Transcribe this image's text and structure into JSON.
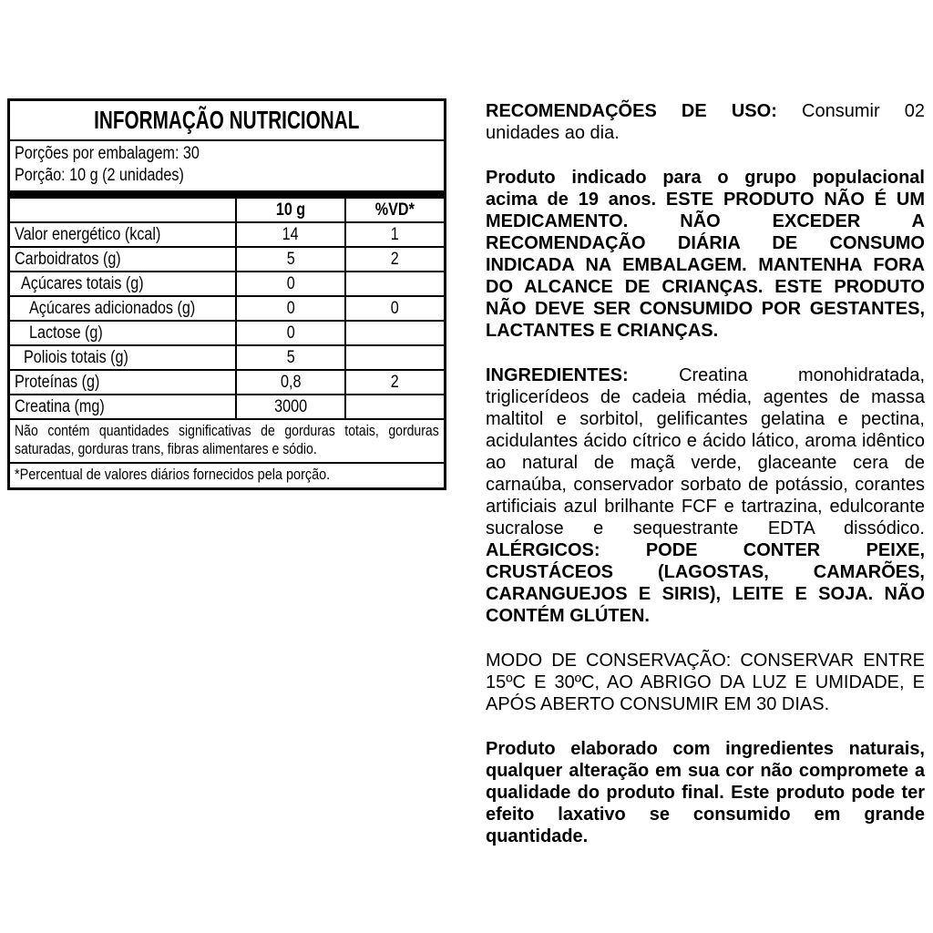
{
  "nutrition_table": {
    "title": "INFORMAÇÃO NUTRICIONAL",
    "servings_per_package": "Porções por embalagem: 30",
    "serving_size": "Porção: 10 g (2 unidades)",
    "columns": {
      "amount": "10 g",
      "dv": "%VD*"
    },
    "rows": [
      {
        "label": "Valor energético (kcal)",
        "amount": "14",
        "dv": "1"
      },
      {
        "label": "Carboidratos (g)",
        "amount": "5",
        "dv": "2"
      },
      {
        "label": "Açúcares totais (g)",
        "amount": "0",
        "dv": ""
      },
      {
        "label": "Açúcares adicionados (g)",
        "amount": "0",
        "dv": "0"
      },
      {
        "label": "Lactose (g)",
        "amount": "0",
        "dv": ""
      },
      {
        "label": "Poliois totais (g)",
        "amount": "5",
        "dv": ""
      },
      {
        "label": "Proteínas (g)",
        "amount": "0,8",
        "dv": "2"
      },
      {
        "label": "Creatina (mg)",
        "amount": "3000",
        "dv": ""
      }
    ],
    "footnote_significant": "Não contém quantidades significativas de gorduras totais, gorduras saturadas, gorduras trans, fibras alimentares e sódio.",
    "footnote_dv": "*Percentual de valores diários fornecidos pela porção."
  },
  "info_panel": {
    "usage": {
      "label": "RECOMENDAÇÕES DE USO:",
      "text": "Consumir 02 unidades ao dia."
    },
    "warning": "Produto indicado para o grupo populacional acima de 19 anos. ESTE PRODUTO NÃO É UM MEDICAMENTO. NÃO EXCEDER A RECOMENDAÇÃO DIÁRIA DE CONSUMO INDICADA NA EMBALAGEM. MANTENHA FORA DO ALCANCE DE CRIANÇAS. ESTE PRODUTO NÃO DEVE SER CONSUMIDO POR GESTANTES, LACTANTES E CRIANÇAS.",
    "ingredients": {
      "label": "INGREDIENTES:",
      "text": "Creatina monohidratada, triglicerídeos de cadeia média, agentes de massa maltitol e sorbitol, gelificantes gelatina e pectina, acidulantes ácido cítrico e ácido lático, aroma idêntico ao natural de maçã verde, glaceante cera de carnaúba, conservador sorbato de potássio, corantes artificiais azul brilhante FCF e tartrazina, edulcorante sucralose e sequestrante EDTA dissódico.",
      "allergens": "ALÉRGICOS: PODE CONTER PEIXE, CRUSTÁCEOS (LAGOSTAS, CAMARÕES, CARANGUEJOS E SIRIS), LEITE E SOJA. NÃO CONTÉM GLÚTEN."
    },
    "storage": "MODO DE CONSERVAÇÃO: CONSERVAR ENTRE 15ºC E 30ºC, AO ABRIGO DA LUZ E UMIDADE, E APÓS ABERTO CONSUMIR EM 30 DIAS.",
    "natural_note": "Produto elaborado com ingredientes naturais, qualquer alteração em sua cor não compromete a qualidade do produto final. Este produto pode ter efeito laxativo se consumido em grande quantidade."
  },
  "colors": {
    "text": "#000000",
    "background": "#ffffff"
  }
}
